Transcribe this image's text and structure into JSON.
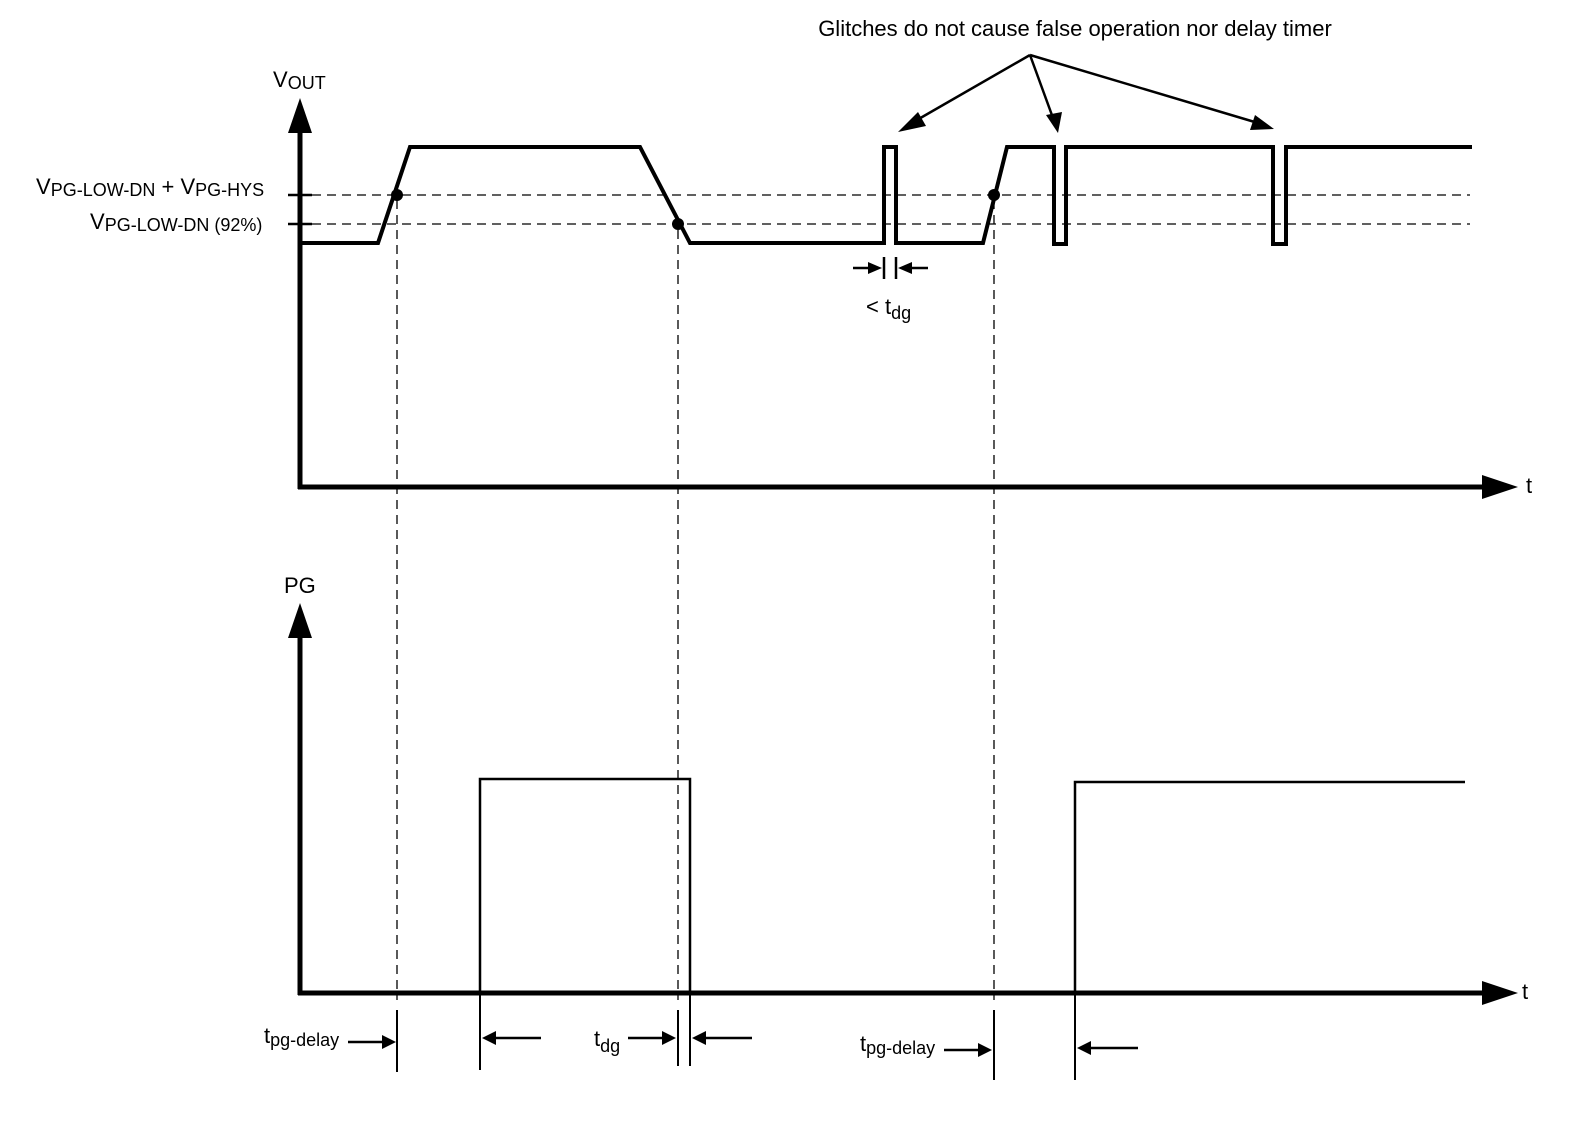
{
  "top_chart": {
    "y_label_main": "V",
    "y_label_sub": "OUT",
    "x_label": "t",
    "level_upper_label": {
      "v1": "V",
      "s1": "PG-LOW-DN",
      "plus": " + ",
      "v2": "V",
      "s2": "PG-HYS"
    },
    "level_lower_label": {
      "v1": "V",
      "s1": "PG-LOW-DN",
      "suffix": " (92%)"
    },
    "glitch_width_label": {
      "prefix": "< t",
      "sub": "dg"
    },
    "callout": "Glitches do not cause false operation nor delay timer"
  },
  "bottom_chart": {
    "y_label": "PG",
    "x_label": "t",
    "annotations": [
      {
        "main": "t",
        "sub": "pg-delay"
      },
      {
        "main": "t",
        "sub": "dg"
      },
      {
        "main": "t",
        "sub": "pg-delay"
      }
    ]
  }
}
